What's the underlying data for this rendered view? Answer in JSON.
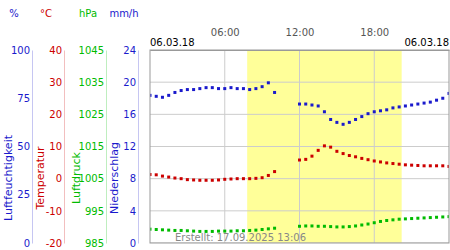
{
  "chart_data": {
    "type": "scatter",
    "x": [
      0,
      0.5,
      1,
      1.5,
      2,
      2.5,
      3,
      3.5,
      4,
      4.5,
      5,
      5.5,
      6,
      6.5,
      7,
      7.5,
      8,
      8.5,
      9,
      9.5,
      10,
      10.5,
      11,
      11.5,
      12,
      12.5,
      13,
      13.5,
      14,
      14.5,
      15,
      15.5,
      16,
      16.5,
      17,
      17.5,
      18,
      18.5,
      19,
      19.5,
      20,
      20.5,
      21,
      21.5,
      22,
      22.5,
      23,
      23.5,
      24
    ],
    "xlim": [
      0,
      24
    ],
    "xticks": [
      {
        "value": 6,
        "label": "06:00"
      },
      {
        "value": 12,
        "label": "12:00"
      },
      {
        "value": 18,
        "label": "18:00"
      }
    ],
    "grid": true,
    "daylight": [
      7.8,
      20.2
    ],
    "annotations": [
      {
        "text": "06.03.18"
      },
      {
        "text": "06.03.18"
      },
      {
        "text": "Erstellt: 17.09.2025 13:06"
      }
    ],
    "axes": {
      "y": {
        "label": "Luftfeuchtigkeit",
        "unit": "%",
        "color": "#1a1acc",
        "lim": [
          0,
          100
        ],
        "ticks": [
          0,
          25,
          50,
          75,
          100
        ]
      },
      "y2": {
        "label": "Temperatur",
        "unit": "°C",
        "color": "#cc0000",
        "lim": [
          -20,
          40
        ],
        "ticks": [
          -20,
          -10,
          0,
          10,
          20,
          30,
          40
        ]
      },
      "y3": {
        "label": "Luftdruck",
        "unit": "hPa",
        "color": "#00bb00",
        "lim": [
          985,
          1045
        ],
        "ticks": [
          985,
          995,
          1005,
          1015,
          1025,
          1035,
          1045
        ]
      },
      "y4": {
        "label": "Niederschlag",
        "unit": "mm/h",
        "color": "#1a1acc",
        "lim": [
          0,
          24
        ],
        "ticks": [
          0,
          4,
          8,
          12,
          16,
          20,
          24
        ]
      }
    },
    "series": [
      {
        "axis": "y",
        "color": "#1a1acc",
        "marker": "square",
        "values": [
          76.5,
          76,
          75.5,
          76.5,
          78,
          79,
          79.5,
          79.5,
          80,
          80.5,
          80.5,
          80,
          80,
          80.5,
          80,
          80,
          79.5,
          80,
          81,
          83,
          78,
          null,
          null,
          null,
          72,
          72,
          71.5,
          71,
          68,
          64,
          62.5,
          61.5,
          62.5,
          64,
          65.5,
          67,
          68,
          68.5,
          69,
          70,
          70.5,
          71,
          71.5,
          72,
          72.5,
          73,
          74,
          75,
          77.5
        ]
      },
      {
        "axis": "y2",
        "color": "#cc0000",
        "marker": "square",
        "values": [
          1.3,
          1.2,
          0.8,
          0.5,
          0.2,
          0,
          -0.3,
          -0.4,
          -0.5,
          -0.5,
          -0.5,
          -0.4,
          -0.2,
          -0.1,
          0,
          0,
          0,
          0.1,
          0.3,
          1,
          2.2,
          null,
          null,
          null,
          5.8,
          6,
          7,
          8.8,
          10.2,
          9.8,
          8.5,
          7.8,
          7.2,
          6.8,
          6.3,
          5.9,
          5.5,
          5.2,
          4.9,
          4.7,
          4.5,
          4.3,
          4.2,
          4.1,
          4,
          4,
          4,
          4,
          3.8
        ]
      },
      {
        "axis": "y3",
        "color": "#00bb00",
        "marker": "square",
        "values": [
          989.3,
          989.2,
          989.1,
          989.0,
          988.9,
          988.9,
          988.8,
          988.7,
          988.6,
          988.6,
          988.6,
          988.7,
          988.7,
          988.7,
          988.8,
          988.8,
          988.9,
          989.0,
          989.2,
          989.4,
          989.6,
          null,
          null,
          null,
          990.2,
          990.3,
          990.3,
          990.2,
          990.2,
          990.1,
          990.0,
          990.0,
          990.1,
          990.3,
          990.6,
          990.9,
          991.3,
          991.7,
          992.0,
          992.2,
          992.4,
          992.5,
          992.6,
          992.7,
          992.8,
          992.9,
          993.0,
          993.1,
          993.2
        ]
      }
    ]
  }
}
